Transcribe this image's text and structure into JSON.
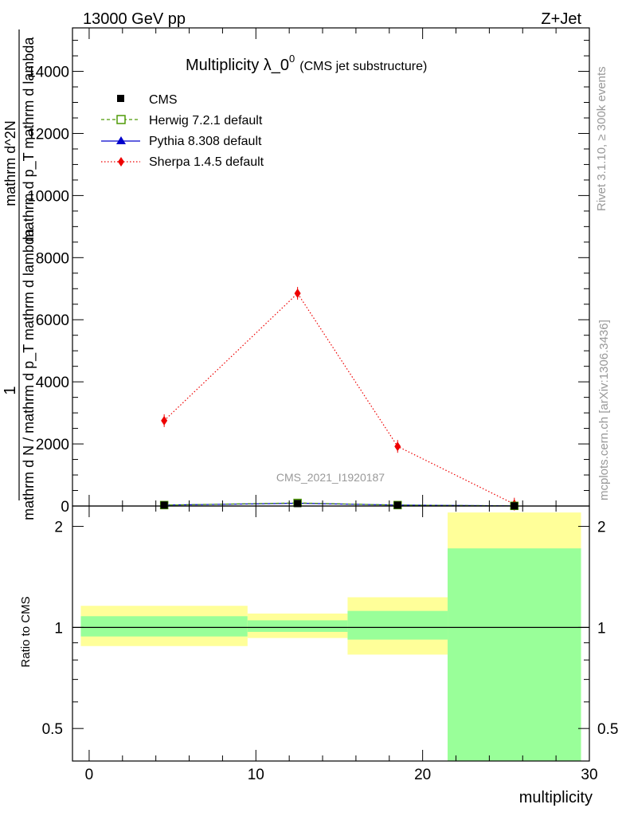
{
  "header": {
    "energy_label": "13000 GeV pp",
    "process_label": "Z+Jet"
  },
  "side_labels": {
    "rivet": "Rivet 3.1.10, ≥ 300k events",
    "mcplots": "mcplots.cern.ch [arXiv:1306.3436]"
  },
  "colors": {
    "cms": "#000000",
    "herwig": "#4e9a06",
    "pythia": "#0000cc",
    "sherpa": "#ee0000",
    "band_outer": "#ffff99",
    "band_inner": "#99ff99"
  },
  "chart_data": [
    {
      "type": "line",
      "title_main": "Multiplicity λ_0",
      "title_sup": "0",
      "title_sub": "(CMS jet substructure)",
      "watermark": "CMS_2021_I1920187",
      "ylabel_numerator": "1",
      "ylabel_denominator": "mathrm d N / mathrm d p_T mathrm d lambda",
      "ylabel_alt_numerator": "mathrm d^2N",
      "ylabel_alt_denominator": "mathrm d p_T mathrm d lambda",
      "xlim": [
        -1,
        30
      ],
      "ylim": [
        0,
        15400
      ],
      "yticks": [
        {
          "value": 0,
          "label": "0"
        },
        {
          "value": 2000,
          "label": "2000"
        },
        {
          "value": 4000,
          "label": "4000"
        },
        {
          "value": 6000,
          "label": "6000"
        },
        {
          "value": 8000,
          "label": "8000"
        },
        {
          "value": 10000,
          "label": "10000"
        },
        {
          "value": 12000,
          "label": "12000"
        },
        {
          "value": 14000,
          "label": "14000"
        }
      ],
      "legend_position": "top-left",
      "series": [
        {
          "name": "CMS",
          "key": "cms",
          "marker": "square",
          "line": "none",
          "x": [
            4.5,
            12.5,
            18.5,
            25.5
          ],
          "y": [
            30,
            80,
            30,
            5
          ]
        },
        {
          "name": "Herwig 7.2.1 default",
          "key": "herwig",
          "marker": "open-square",
          "line": "dashed",
          "x": [
            4.5,
            12.5,
            18.5,
            25.5
          ],
          "y": [
            30,
            100,
            30,
            5
          ]
        },
        {
          "name": "Pythia 8.308 default",
          "key": "pythia",
          "marker": "triangle",
          "line": "solid",
          "x": [
            4.5,
            12.5,
            18.5,
            25.5
          ],
          "y": [
            30,
            90,
            30,
            5
          ]
        },
        {
          "name": "Sherpa 1.4.5 default",
          "key": "sherpa",
          "marker": "diamond",
          "line": "dotted",
          "x": [
            4.5,
            12.5,
            18.5,
            25.5
          ],
          "y": [
            2750,
            6850,
            1920,
            60
          ]
        }
      ]
    },
    {
      "type": "area",
      "ylabel": "Ratio to CMS",
      "xlabel": "multiplicity",
      "xlim": [
        -1,
        30
      ],
      "ylim": [
        0.4,
        2.3
      ],
      "log_y": true,
      "reference_line": 1,
      "xticks": [
        {
          "value": 0,
          "label": "0"
        },
        {
          "value": 10,
          "label": "10"
        },
        {
          "value": 20,
          "label": "20"
        },
        {
          "value": 30,
          "label": "30"
        }
      ],
      "yticks": [
        {
          "value": 0.5,
          "label": "0.5"
        },
        {
          "value": 1,
          "label": "1"
        },
        {
          "value": 2,
          "label": "2"
        }
      ],
      "bands": [
        {
          "xlo": -0.5,
          "xhi": 9.5,
          "outer": [
            0.88,
            1.16
          ],
          "inner": [
            0.94,
            1.08
          ]
        },
        {
          "xlo": 9.5,
          "xhi": 15.5,
          "outer": [
            0.93,
            1.1
          ],
          "inner": [
            0.97,
            1.05
          ]
        },
        {
          "xlo": 15.5,
          "xhi": 21.5,
          "outer": [
            0.83,
            1.23
          ],
          "inner": [
            0.92,
            1.12
          ]
        },
        {
          "xlo": 21.5,
          "xhi": 29.5,
          "outer": [
            0.4,
            2.2
          ],
          "inner": [
            0.4,
            1.72
          ]
        }
      ]
    }
  ]
}
